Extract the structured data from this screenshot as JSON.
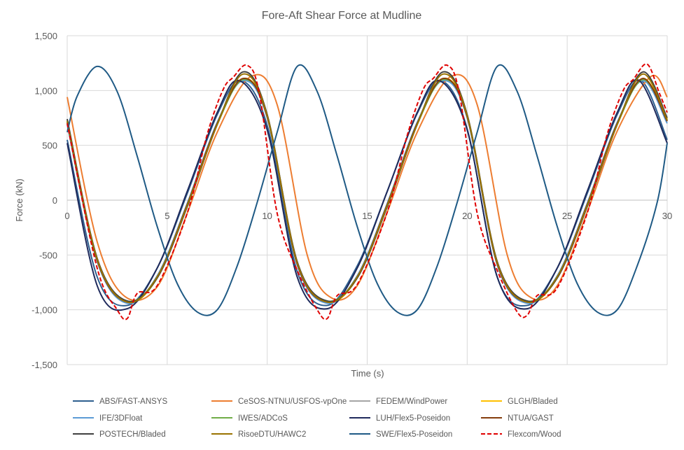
{
  "chart_data": {
    "type": "line",
    "title": "Fore-Aft Shear Force at Mudline",
    "xlabel": "Time (s)",
    "ylabel": "Force (kN)",
    "xlim": [
      0,
      30
    ],
    "ylim": [
      -1500,
      1500
    ],
    "x_ticks": [
      "0",
      "5",
      "10",
      "15",
      "20",
      "25",
      "30"
    ],
    "y_ticks": [
      "1,500",
      "1,000",
      "500",
      "0",
      "-500",
      "-1,000",
      "-1,500"
    ],
    "grid": true,
    "legend_position": "bottom",
    "series": [
      {
        "name": "ABS/FAST-ANSYS",
        "color": "#2e5f8f",
        "style": "solid",
        "x": [
          0,
          1.5,
          3,
          4.5,
          6,
          7.5,
          8.7,
          10,
          11.5,
          13,
          14.5,
          16,
          17.5,
          18.7,
          20,
          21.5,
          23,
          24.5,
          26,
          27.5,
          28.7,
          30
        ],
        "y": [
          550,
          -700,
          -960,
          -620,
          60,
          780,
          1090,
          680,
          -650,
          -960,
          -600,
          80,
          790,
          1090,
          650,
          -700,
          -960,
          -620,
          60,
          780,
          1090,
          550
        ]
      },
      {
        "name": "CeSOS-NTNU/USFOS-vpOne",
        "color": "#ed7d31",
        "style": "solid",
        "x": [
          0,
          1.5,
          2.9,
          4.5,
          6,
          7.5,
          9.2,
          10.5,
          12,
          13.2,
          14.5,
          16,
          17.5,
          19.2,
          20.5,
          22,
          23.2,
          24.5,
          26,
          27.5,
          29.2,
          30
        ],
        "y": [
          940,
          -380,
          -880,
          -790,
          -120,
          620,
          1130,
          870,
          -500,
          -890,
          -780,
          -110,
          620,
          1130,
          870,
          -500,
          -890,
          -780,
          -110,
          630,
          1130,
          940
        ]
      },
      {
        "name": "FEDEM/WindPower",
        "color": "#a5a5a5",
        "style": "solid",
        "x": [
          0,
          1.5,
          3,
          4.5,
          6,
          7.5,
          8.8,
          10,
          11.5,
          13,
          14.5,
          16,
          17.5,
          18.8,
          20,
          21.5,
          23,
          24.5,
          26,
          27.5,
          28.8,
          30
        ],
        "y": [
          700,
          -550,
          -930,
          -700,
          -40,
          700,
          1100,
          760,
          -580,
          -930,
          -700,
          -40,
          700,
          1100,
          760,
          -580,
          -930,
          -700,
          -40,
          700,
          1100,
          720
        ]
      },
      {
        "name": "GLGH/Bladed",
        "color": "#ffc000",
        "style": "solid",
        "x": [
          0,
          1.5,
          3,
          4.5,
          6,
          7.5,
          8.8,
          10,
          11.5,
          13,
          14.5,
          16,
          17.5,
          18.8,
          20,
          21.5,
          23,
          24.5,
          26,
          27.5,
          28.8,
          30
        ],
        "y": [
          730,
          -540,
          -930,
          -710,
          -50,
          690,
          1110,
          770,
          -570,
          -930,
          -710,
          -50,
          690,
          1110,
          770,
          -570,
          -930,
          -710,
          -50,
          690,
          1110,
          740
        ]
      },
      {
        "name": "IFE/3DFloat",
        "color": "#5b9bd5",
        "style": "solid",
        "x": [
          0,
          1.5,
          3,
          4.5,
          6,
          7.5,
          8.8,
          10,
          11.5,
          13,
          14.5,
          16,
          17.5,
          18.8,
          20,
          21.5,
          23,
          24.5,
          26,
          27.5,
          28.8,
          30
        ],
        "y": [
          690,
          -560,
          -940,
          -690,
          -30,
          710,
          1090,
          750,
          -590,
          -940,
          -690,
          -30,
          710,
          1090,
          750,
          -590,
          -940,
          -690,
          -30,
          710,
          1090,
          700
        ]
      },
      {
        "name": "IWES/ADCoS",
        "color": "#70ad47",
        "style": "solid",
        "x": [
          0,
          1.5,
          3,
          4.5,
          6,
          7.5,
          8.8,
          10,
          11.5,
          13,
          14.5,
          16,
          17.5,
          18.8,
          20,
          21.5,
          23,
          24.5,
          26,
          27.5,
          28.8,
          30
        ],
        "y": [
          720,
          -540,
          -920,
          -700,
          -50,
          690,
          1100,
          770,
          -570,
          -920,
          -700,
          -50,
          690,
          1100,
          770,
          -570,
          -920,
          -700,
          -50,
          690,
          1100,
          730
        ]
      },
      {
        "name": "LUH/Flex5-Poseidon",
        "color": "#1f2a5c",
        "style": "solid",
        "x": [
          0,
          1.5,
          3,
          4.5,
          6,
          7.5,
          8.6,
          10,
          11.5,
          13,
          14.5,
          16,
          17.5,
          18.6,
          20,
          21.5,
          23,
          24.5,
          26,
          27.5,
          28.6,
          30
        ],
        "y": [
          520,
          -780,
          -990,
          -620,
          80,
          800,
          1090,
          640,
          -700,
          -990,
          -620,
          80,
          800,
          1090,
          640,
          -700,
          -990,
          -620,
          80,
          800,
          1090,
          520
        ]
      },
      {
        "name": "NTUA/GAST",
        "color": "#843c0c",
        "style": "solid",
        "x": [
          0,
          1.5,
          3,
          4.5,
          6,
          7.5,
          8.8,
          10,
          11.5,
          13,
          14.5,
          16,
          17.5,
          18.8,
          20,
          21.5,
          23,
          24.5,
          26,
          27.5,
          28.8,
          30
        ],
        "y": [
          710,
          -550,
          -930,
          -700,
          -40,
          700,
          1110,
          760,
          -580,
          -930,
          -700,
          -40,
          700,
          1110,
          760,
          -580,
          -930,
          -700,
          -40,
          700,
          1110,
          720
        ]
      },
      {
        "name": "POSTECH/Bladed",
        "color": "#404040",
        "style": "solid",
        "x": [
          0,
          1.5,
          3,
          4.5,
          6,
          7.5,
          8.8,
          10,
          11.5,
          13,
          14.5,
          16,
          17.5,
          18.8,
          20,
          21.5,
          23,
          24.5,
          26,
          27.5,
          28.8,
          30
        ],
        "y": [
          740,
          -530,
          -920,
          -710,
          -60,
          690,
          1170,
          780,
          -560,
          -920,
          -710,
          -60,
          690,
          1170,
          780,
          -560,
          -920,
          -710,
          -60,
          690,
          1170,
          750
        ]
      },
      {
        "name": "RisoeDTU/HAWC2",
        "color": "#997300",
        "style": "solid",
        "x": [
          0,
          1.5,
          3,
          4.5,
          6,
          7.5,
          8.8,
          10,
          11.5,
          13,
          14.5,
          16,
          17.5,
          18.8,
          20,
          21.5,
          23,
          24.5,
          26,
          27.5,
          28.8,
          30
        ],
        "y": [
          720,
          -540,
          -930,
          -700,
          -50,
          690,
          1150,
          770,
          -570,
          -930,
          -700,
          -50,
          690,
          1150,
          770,
          -570,
          -930,
          -700,
          -50,
          690,
          1150,
          730
        ]
      },
      {
        "name": "SWE/Flex5-Poseidon",
        "color": "#1f5a85",
        "style": "solid",
        "x": [
          0,
          0.5,
          1.5,
          2.5,
          3.5,
          4.5,
          5.5,
          6.5,
          7.5,
          8.5,
          9.5,
          10.5,
          11.5,
          12.5,
          13.5,
          14.5,
          15.5,
          16.5,
          17.5,
          18.5,
          19.5,
          20.5,
          21.5,
          22.5,
          23.5,
          24.5,
          25.5,
          26.5,
          27.5,
          28.5,
          29.5,
          30
        ],
        "y": [
          620,
          950,
          1220,
          990,
          400,
          -240,
          -760,
          -1020,
          -1000,
          -600,
          -20,
          620,
          1220,
          990,
          400,
          -240,
          -760,
          -1020,
          -1000,
          -600,
          -20,
          620,
          1220,
          990,
          400,
          -240,
          -760,
          -1020,
          -1000,
          -600,
          -20,
          520
        ]
      },
      {
        "name": "Flexcom/Wood",
        "color": "#e00000",
        "style": "dashed",
        "x": [
          0,
          1.5,
          2.5,
          3,
          3.5,
          4.5,
          6,
          7,
          7.8,
          8.3,
          9,
          9.6,
          10.5,
          11.5,
          12.5,
          13,
          13.5,
          14.5,
          16,
          17,
          17.8,
          18.3,
          19,
          19.6,
          20.5,
          21.5,
          22.5,
          23,
          23.5,
          24.5,
          26,
          27,
          27.8,
          28.3,
          29,
          29.6,
          30
        ],
        "y": [
          700,
          -620,
          -1000,
          -1080,
          -850,
          -780,
          -120,
          600,
          1010,
          1120,
          1230,
          980,
          -120,
          -640,
          -1000,
          -1080,
          -870,
          -770,
          -110,
          590,
          1010,
          1110,
          1230,
          980,
          -120,
          -640,
          -1020,
          -1050,
          -870,
          -800,
          -120,
          600,
          1000,
          1100,
          1240,
          980,
          800
        ]
      }
    ]
  }
}
